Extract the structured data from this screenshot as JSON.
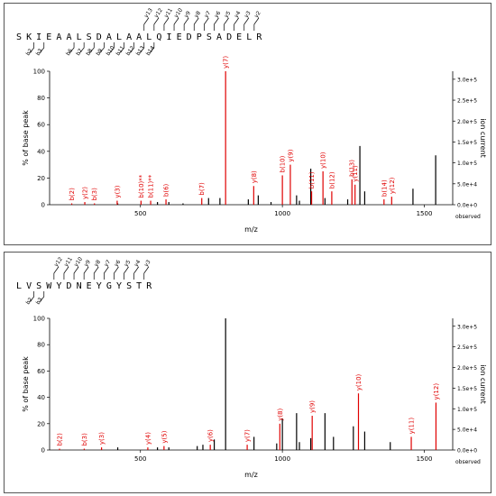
{
  "panels": [
    {
      "sequence": "SKIEAALSDALAALQIEDPSADELR",
      "b_frags": [
        "b2",
        "b3",
        "b6",
        "b7",
        "b8",
        "b9",
        "b10",
        "b11",
        "b12",
        "b13",
        "b14"
      ],
      "y_frags": [
        "y13",
        "y12",
        "y11",
        "y10",
        "y9",
        "y8",
        "y7",
        "y6",
        "y5",
        "y4",
        "y3",
        "y2"
      ],
      "chart_data": {
        "type": "bar",
        "ylabel": "% of base peak",
        "y2label": "ion current",
        "xlabel": "m/z",
        "observed_label": "observed",
        "xlim": [
          180,
          1600
        ],
        "ylim": [
          0,
          100
        ],
        "xticks": [
          500,
          1000,
          1500
        ],
        "yticks": [
          0,
          20,
          40,
          60,
          80,
          100
        ],
        "y2ticks": [
          "0.0e+0",
          "5.0e+4",
          "1.0e+5",
          "1.5e+5",
          "2.0e+5",
          "2.5e+5",
          "3.0e+5"
        ],
        "labeled_peaks": [
          {
            "label": "b(2)",
            "mz": 258,
            "intensity": 1
          },
          {
            "label": "y(2)",
            "mz": 304,
            "intensity": 2
          },
          {
            "label": "b(3)",
            "mz": 338,
            "intensity": 1
          },
          {
            "label": "y(3)",
            "mz": 418,
            "intensity": 3
          },
          {
            "label": "b(10)**",
            "mz": 502,
            "intensity": 3
          },
          {
            "label": "b(11)**",
            "mz": 536,
            "intensity": 3
          },
          {
            "label": "b(6)",
            "mz": 590,
            "intensity": 4
          },
          {
            "label": "b(7)",
            "mz": 716,
            "intensity": 5
          },
          {
            "label": "y(7)",
            "mz": 800,
            "intensity": 100
          },
          {
            "label": "y(8)",
            "mz": 899,
            "intensity": 14
          },
          {
            "label": "b(10)",
            "mz": 1000,
            "intensity": 22
          },
          {
            "label": "y(9)",
            "mz": 1028,
            "intensity": 30
          },
          {
            "label": "b(11)",
            "mz": 1103,
            "intensity": 10
          },
          {
            "label": "y(10)",
            "mz": 1143,
            "intensity": 25
          },
          {
            "label": "b(12)",
            "mz": 1174,
            "intensity": 10
          },
          {
            "label": "b(13)",
            "mz": 1245,
            "intensity": 19
          },
          {
            "label": "y(11)",
            "mz": 1256,
            "intensity": 15
          },
          {
            "label": "b(14)",
            "mz": 1358,
            "intensity": 4
          },
          {
            "label": "y(12)",
            "mz": 1385,
            "intensity": 6
          }
        ],
        "unlabeled_peaks": [
          {
            "mz": 420,
            "intensity": 1
          },
          {
            "mz": 560,
            "intensity": 2
          },
          {
            "mz": 600,
            "intensity": 2
          },
          {
            "mz": 650,
            "intensity": 1
          },
          {
            "mz": 740,
            "intensity": 5
          },
          {
            "mz": 780,
            "intensity": 5
          },
          {
            "mz": 880,
            "intensity": 4
          },
          {
            "mz": 915,
            "intensity": 7
          },
          {
            "mz": 960,
            "intensity": 2
          },
          {
            "mz": 1050,
            "intensity": 7
          },
          {
            "mz": 1060,
            "intensity": 3
          },
          {
            "mz": 1100,
            "intensity": 27
          },
          {
            "mz": 1150,
            "intensity": 5
          },
          {
            "mz": 1230,
            "intensity": 4
          },
          {
            "mz": 1273,
            "intensity": 44
          },
          {
            "mz": 1290,
            "intensity": 10
          },
          {
            "mz": 1460,
            "intensity": 12
          },
          {
            "mz": 1540,
            "intensity": 37
          }
        ]
      }
    },
    {
      "sequence": "LVSWYDNEYGYSTR",
      "b_frags": [
        "b2",
        "b3"
      ],
      "y_frags": [
        "y12",
        "y11",
        "y10",
        "y9",
        "y8",
        "y7",
        "y6",
        "y5",
        "y4",
        "y3"
      ],
      "chart_data": {
        "type": "bar",
        "ylabel": "% of base peak",
        "y2label": "ion current",
        "xlabel": "m/z",
        "observed_label": "observed",
        "xlim": [
          180,
          1600
        ],
        "ylim": [
          0,
          100
        ],
        "xticks": [
          500,
          1000,
          1500
        ],
        "yticks": [
          0,
          20,
          40,
          60,
          80,
          100
        ],
        "y2ticks": [
          "0.0e+0",
          "5.0e+4",
          "1.0e+5",
          "1.5e+5",
          "2.0e+5",
          "2.5e+5",
          "3.0e+5"
        ],
        "labeled_peaks": [
          {
            "label": "b(2)",
            "mz": 215,
            "intensity": 1
          },
          {
            "label": "b(3)",
            "mz": 302,
            "intensity": 1
          },
          {
            "label": "y(3)",
            "mz": 363,
            "intensity": 2
          },
          {
            "label": "y(4)",
            "mz": 526,
            "intensity": 2
          },
          {
            "label": "y(5)",
            "mz": 583,
            "intensity": 3
          },
          {
            "label": "y(6)",
            "mz": 746,
            "intensity": 4
          },
          {
            "label": "y(7)",
            "mz": 876,
            "intensity": 4
          },
          {
            "label": "y(8)",
            "mz": 991,
            "intensity": 20
          },
          {
            "label": "y(9)",
            "mz": 1105,
            "intensity": 26
          },
          {
            "label": "y(10)",
            "mz": 1268,
            "intensity": 43
          },
          {
            "label": "y(11)",
            "mz": 1454,
            "intensity": 10
          },
          {
            "label": "y(12)",
            "mz": 1541,
            "intensity": 36
          }
        ],
        "unlabeled_peaks": [
          {
            "mz": 420,
            "intensity": 2
          },
          {
            "mz": 560,
            "intensity": 2
          },
          {
            "mz": 600,
            "intensity": 2
          },
          {
            "mz": 700,
            "intensity": 3
          },
          {
            "mz": 720,
            "intensity": 4
          },
          {
            "mz": 760,
            "intensity": 8
          },
          {
            "mz": 800,
            "intensity": 100
          },
          {
            "mz": 900,
            "intensity": 10
          },
          {
            "mz": 980,
            "intensity": 5
          },
          {
            "mz": 1000,
            "intensity": 24
          },
          {
            "mz": 1050,
            "intensity": 28
          },
          {
            "mz": 1060,
            "intensity": 6
          },
          {
            "mz": 1100,
            "intensity": 9
          },
          {
            "mz": 1150,
            "intensity": 28
          },
          {
            "mz": 1180,
            "intensity": 10
          },
          {
            "mz": 1250,
            "intensity": 18
          },
          {
            "mz": 1290,
            "intensity": 14
          },
          {
            "mz": 1380,
            "intensity": 6
          }
        ]
      }
    }
  ]
}
